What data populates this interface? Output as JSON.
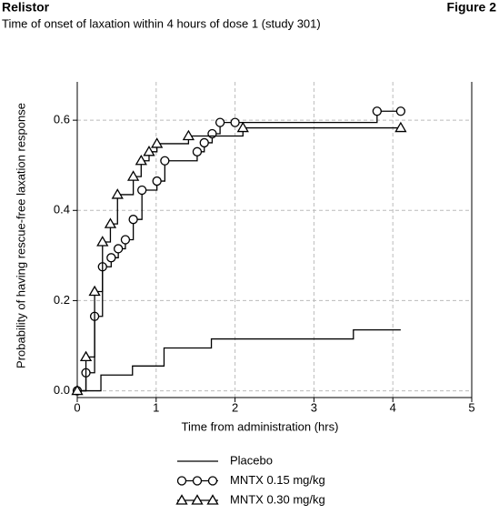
{
  "header": {
    "title": "Relistor",
    "figure": "Figure 2",
    "subtitle": "Time of onset of laxation within 4 hours of dose 1 (study 301)"
  },
  "chart_data": {
    "type": "step",
    "xlabel": "Time from administration (hrs)",
    "ylabel": "Probability of having rescue-free laxation response",
    "xlim": [
      0,
      5
    ],
    "ylim": [
      -0.015,
      0.685
    ],
    "xticks": [
      0,
      1,
      2,
      3,
      4,
      5
    ],
    "yticks": [
      {
        "value": 0,
        "label": "0.0"
      },
      0.2,
      0.4,
      0.6
    ],
    "grid": true,
    "legend": "bottom",
    "series": [
      {
        "name": "Placebo",
        "color": "#000000",
        "marker": "none",
        "x": [
          0,
          0.3,
          0.7,
          1.1,
          1.7,
          3.5,
          4.1
        ],
        "values": [
          0,
          0.035,
          0.055,
          0.095,
          0.115,
          0.135,
          0.135
        ]
      },
      {
        "name": "MNTX 0.15 mg/kg",
        "color": "#000000",
        "marker": "circle",
        "x": [
          0,
          0.11,
          0.22,
          0.32,
          0.43,
          0.52,
          0.61,
          0.71,
          0.82,
          1.01,
          1.11,
          1.52,
          1.61,
          1.71,
          1.81,
          2.0,
          3.8,
          4.1
        ],
        "values": [
          0,
          0.04,
          0.165,
          0.275,
          0.295,
          0.315,
          0.335,
          0.38,
          0.445,
          0.465,
          0.51,
          0.53,
          0.55,
          0.57,
          0.595,
          0.595,
          0.62,
          0.62
        ]
      },
      {
        "name": "MNTX 0.30 mg/kg",
        "color": "#000000",
        "marker": "triangle",
        "x": [
          0,
          0.11,
          0.22,
          0.32,
          0.42,
          0.51,
          0.71,
          0.81,
          0.91,
          1.01,
          1.41,
          2.1,
          4.1
        ],
        "values": [
          0,
          0.075,
          0.22,
          0.33,
          0.37,
          0.435,
          0.475,
          0.51,
          0.53,
          0.548,
          0.565,
          0.583,
          0.583
        ]
      }
    ]
  }
}
